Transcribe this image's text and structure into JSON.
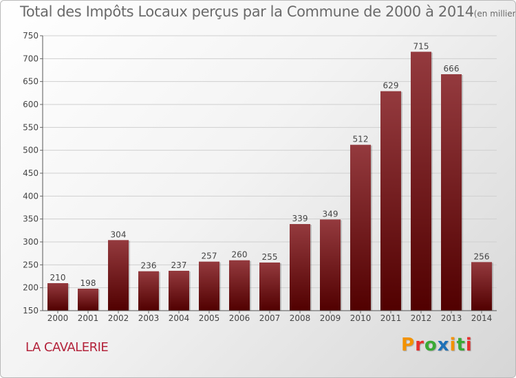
{
  "title": "Total des Impôts Locaux perçus par la Commune de 2000 à 2014",
  "subtitle": "(en milliers d'€)",
  "commune": "LA CAVALERIE",
  "logo": {
    "letters": [
      "P",
      "r",
      "o",
      "x",
      "i",
      "t",
      "i"
    ],
    "colors": [
      "#f39200",
      "#e62e2d",
      "#3aaa35",
      "#1d71b8",
      "#f39200",
      "#3aaa35",
      "#e62e2d"
    ]
  },
  "colors": {
    "bar_top": "#943a3e",
    "bar_bottom": "#510000",
    "grid": "#cfcfcf",
    "text": "#444444"
  },
  "chart_data": {
    "type": "bar",
    "title": "Total des Impôts Locaux perçus par la Commune de 2000 à 2014",
    "xlabel": "",
    "ylabel": "",
    "ylim": [
      150,
      750
    ],
    "yticks": [
      150,
      200,
      250,
      300,
      350,
      400,
      450,
      500,
      550,
      600,
      650,
      700,
      750
    ],
    "grid": true,
    "categories": [
      "2000",
      "2001",
      "2002",
      "2003",
      "2004",
      "2005",
      "2006",
      "2007",
      "2008",
      "2009",
      "2010",
      "2011",
      "2012",
      "2013",
      "2014"
    ],
    "values": [
      210,
      198,
      304,
      236,
      237,
      257,
      260,
      255,
      339,
      349,
      512,
      629,
      715,
      666,
      256
    ]
  }
}
